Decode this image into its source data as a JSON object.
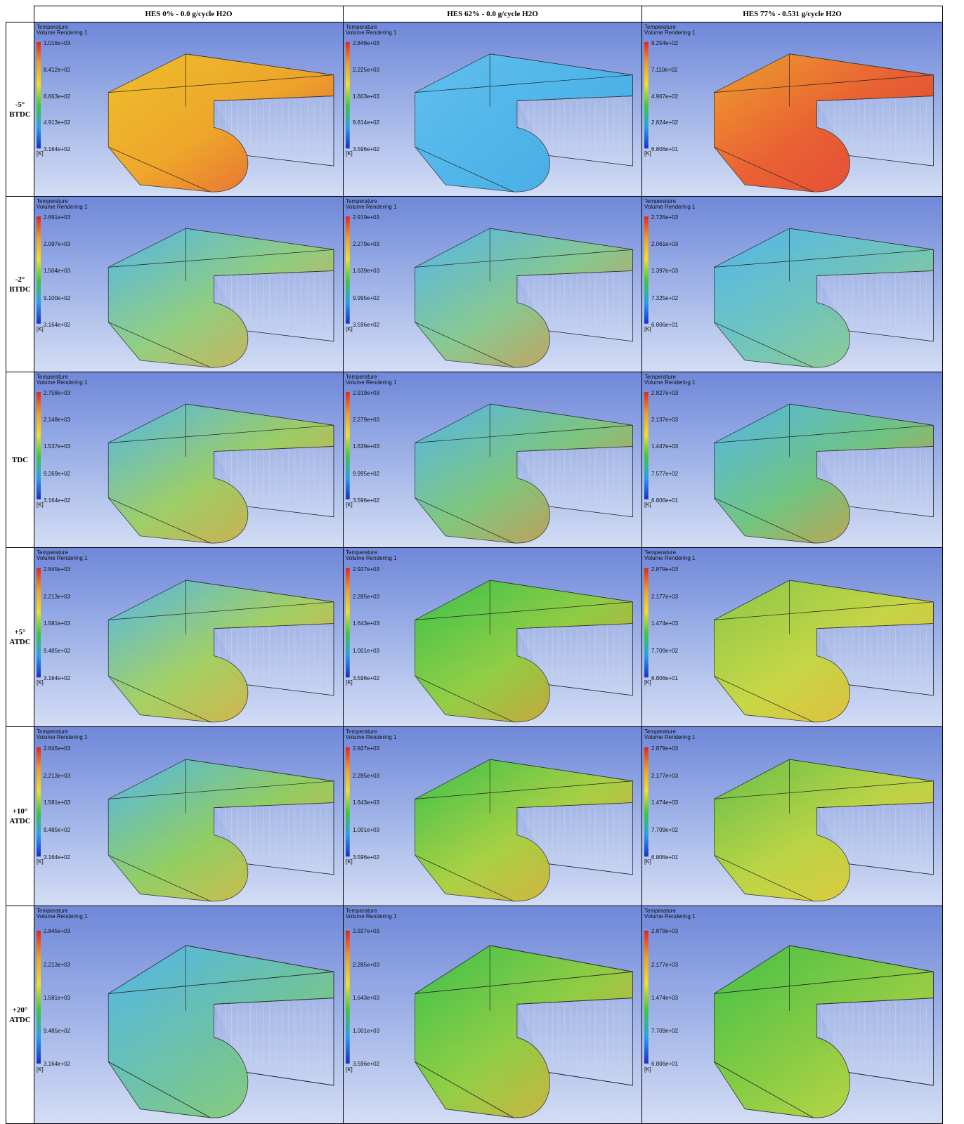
{
  "columns": [
    "HES 0% - 0.0 g/cycle H2O",
    "HES 62% - 0.0 g/cycle H2O",
    "HES 77% - 0.531 g/cycle H2O"
  ],
  "rows": [
    {
      "label": [
        "-5°",
        "BTDC"
      ],
      "cells": [
        {
          "title": "Temperature",
          "subtitle": "Volume Rendering 1",
          "scale": [
            "1.016e+03",
            "8.412e+02",
            "6.663e+02",
            "4.913e+02",
            "3.164e+02"
          ],
          "unit": "[K]"
        },
        {
          "title": "Temperature",
          "subtitle": "Volume Rendering 1",
          "scale": [
            "2.846e+03",
            "2.225e+03",
            "1.603e+03",
            "9.814e+02",
            "3.596e+02"
          ],
          "unit": "[K]"
        },
        {
          "title": "Temperature",
          "subtitle": "Volume Rendering 1",
          "scale": [
            "9.254e+02",
            "7.110e+02",
            "4.967e+02",
            "2.824e+02",
            "6.806e+01"
          ],
          "unit": "[K]"
        }
      ]
    },
    {
      "label": [
        "-2°",
        "BTDC"
      ],
      "cells": [
        {
          "title": "Temperature",
          "subtitle": "Volume Rendering 1",
          "scale": [
            "2.691e+03",
            "2.097e+03",
            "1.504e+03",
            "9.100e+02",
            "3.164e+02"
          ],
          "unit": "[K]"
        },
        {
          "title": "Temperature",
          "subtitle": "Volume Rendering 1",
          "scale": [
            "2.919e+03",
            "2.279e+03",
            "1.639e+03",
            "9.995e+02",
            "3.596e+02"
          ],
          "unit": "[K]"
        },
        {
          "title": "Temperature",
          "subtitle": "Volume Rendering 1",
          "scale": [
            "2.726e+03",
            "2.061e+03",
            "1.397e+03",
            "7.325e+02",
            "6.806e+01"
          ],
          "unit": "[K]"
        }
      ]
    },
    {
      "label": [
        "TDC"
      ],
      "cells": [
        {
          "title": "Temperature",
          "subtitle": "Volume Rendering 1",
          "scale": [
            "2.758e+03",
            "2.148e+03",
            "1.537e+03",
            "9.269e+02",
            "3.164e+02"
          ],
          "unit": "[K]"
        },
        {
          "title": "Temperature",
          "subtitle": "Volume Rendering 1",
          "scale": [
            "2.919e+03",
            "2.279e+03",
            "1.639e+03",
            "9.995e+02",
            "3.596e+02"
          ],
          "unit": "[K]"
        },
        {
          "title": "Temperature",
          "subtitle": "Volume Rendering 1",
          "scale": [
            "2.827e+03",
            "2.137e+03",
            "1.447e+03",
            "7.577e+02",
            "6.806e+01"
          ],
          "unit": "[K]"
        }
      ]
    },
    {
      "label": [
        "+5°",
        "ATDC"
      ],
      "cells": [
        {
          "title": "Temperature",
          "subtitle": "Volume Rendering 1",
          "scale": [
            "2.845e+03",
            "2.213e+03",
            "1.581e+03",
            "9.485e+02",
            "3.164e+02"
          ],
          "unit": "[K]"
        },
        {
          "title": "Temperature",
          "subtitle": "Volume Rendering 1",
          "scale": [
            "2.927e+03",
            "2.285e+03",
            "1.643e+03",
            "1.001e+03",
            "3.596e+02"
          ],
          "unit": "[K]"
        },
        {
          "title": "Temperature",
          "subtitle": "Volume Rendering 1",
          "scale": [
            "2.879e+03",
            "2.177e+03",
            "1.474e+03",
            "7.709e+02",
            "6.806e+01"
          ],
          "unit": "[K]"
        }
      ]
    },
    {
      "label": [
        "+10°",
        "ATDC"
      ],
      "cells": [
        {
          "title": "Temperature",
          "subtitle": "Volume Rendering 1",
          "scale": [
            "2.845e+03",
            "2.213e+03",
            "1.581e+03",
            "9.485e+02",
            "3.164e+02"
          ],
          "unit": "[K]"
        },
        {
          "title": "Temperature",
          "subtitle": "Volume Rendering 1",
          "scale": [
            "2.927e+03",
            "2.285e+03",
            "1.643e+03",
            "1.001e+03",
            "3.596e+02"
          ],
          "unit": "[K]"
        },
        {
          "title": "Temperature",
          "subtitle": "Volume Rendering 1",
          "scale": [
            "2.879e+03",
            "2.177e+03",
            "1.474e+03",
            "7.709e+02",
            "6.806e+01"
          ],
          "unit": "[K]"
        }
      ]
    },
    {
      "label": [
        "+20°",
        "ATDC"
      ],
      "cells": [
        {
          "title": "Temperature",
          "subtitle": "Volume Rendering 1",
          "scale": [
            "2.845e+03",
            "2.213e+03",
            "1.581e+03",
            "9.485e+02",
            "3.164e+02"
          ],
          "unit": "[K]"
        },
        {
          "title": "Temperature",
          "subtitle": "Volume Rendering 1",
          "scale": [
            "2.927e+03",
            "2.285e+03",
            "1.643e+03",
            "1.001e+03",
            "3.596e+02"
          ],
          "unit": "[K]"
        },
        {
          "title": "Temperature",
          "subtitle": "Volume Rendering 1",
          "scale": [
            "2.879e+03",
            "2.177e+03",
            "1.474e+03",
            "7.709e+02",
            "6.806e+01"
          ],
          "unit": "[K]"
        }
      ]
    }
  ]
}
